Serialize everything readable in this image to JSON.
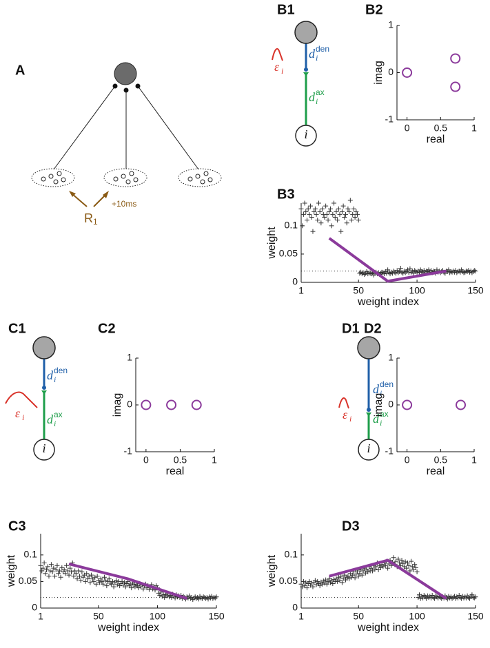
{
  "diagram_A": {
    "label": "A",
    "stimulus": {
      "base": "R",
      "sub": "1"
    },
    "delay": "+10ms"
  },
  "neuron_diagrams": [
    {
      "label": "B1",
      "den": {
        "base": "d",
        "sub": "i",
        "sup": "den"
      },
      "ax": {
        "base": "d",
        "sub": "i",
        "sup": "ax"
      },
      "kernel": {
        "base": "ε",
        "sub": "i"
      },
      "node": "i"
    },
    {
      "label": "C1",
      "den": {
        "base": "d",
        "sub": "i",
        "sup": "den"
      },
      "ax": {
        "base": "d",
        "sub": "i",
        "sup": "ax"
      },
      "kernel": {
        "base": "ε",
        "sub": "i"
      },
      "node": "i"
    },
    {
      "label": "D1",
      "den": {
        "base": "d",
        "sub": "i",
        "sup": "den"
      },
      "ax": {
        "base": "d",
        "sub": "i",
        "sup": "ax"
      },
      "kernel": {
        "base": "ε",
        "sub": "i"
      },
      "node": "i"
    }
  ],
  "chart_data": [
    {
      "type": "scatter",
      "label": "B2",
      "x_label": "real",
      "y_label": "imag",
      "marker": "circle",
      "color": "#8b3a9b",
      "x": [
        0,
        0.72,
        0.72
      ],
      "values": [
        0,
        0.3,
        -0.3
      ],
      "xlim": [
        -0.15,
        1
      ],
      "xticks": [
        0,
        0.5,
        1
      ],
      "ylim": [
        -1,
        1
      ],
      "yticks": [
        -1,
        0,
        1
      ]
    },
    {
      "type": "scatter",
      "label": "B3",
      "x_label": "weight index",
      "y_label": "weight",
      "marker": "plus",
      "color": "#333333",
      "x": [
        1,
        2,
        3,
        4,
        5,
        6,
        7,
        8,
        9,
        10,
        11,
        12,
        13,
        14,
        15,
        16,
        17,
        18,
        19,
        20,
        21,
        22,
        23,
        24,
        25,
        26,
        27,
        28,
        29,
        30,
        31,
        32,
        33,
        34,
        35,
        36,
        37,
        38,
        39,
        40,
        41,
        42,
        43,
        44,
        45,
        46,
        47,
        48,
        49,
        50,
        51,
        52,
        53,
        54,
        55,
        56,
        57,
        58,
        59,
        60,
        61,
        62,
        63,
        64,
        65,
        66,
        67,
        68,
        69,
        70,
        71,
        72,
        73,
        74,
        75,
        76,
        77,
        78,
        79,
        80,
        81,
        82,
        83,
        84,
        85,
        86,
        87,
        88,
        89,
        90,
        91,
        92,
        93,
        94,
        95,
        96,
        97,
        98,
        99,
        100,
        101,
        102,
        103,
        104,
        105,
        106,
        107,
        108,
        109,
        110,
        111,
        112,
        113,
        114,
        115,
        116,
        117,
        118,
        119,
        120,
        121,
        122,
        123,
        124,
        125,
        126,
        127,
        128,
        129,
        130,
        131,
        132,
        133,
        134,
        135,
        136,
        137,
        138,
        139,
        140,
        141,
        142,
        143,
        144,
        145,
        146,
        147,
        148,
        149,
        150
      ],
      "values": [
        0.13,
        0.1,
        0.12,
        0.14,
        0.125,
        0.11,
        0.13,
        0.12,
        0.135,
        0.115,
        0.09,
        0.125,
        0.13,
        0.12,
        0.11,
        0.14,
        0.125,
        0.105,
        0.13,
        0.12,
        0.115,
        0.135,
        0.12,
        0.11,
        0.125,
        0.13,
        0.1,
        0.12,
        0.14,
        0.115,
        0.125,
        0.11,
        0.13,
        0.12,
        0.09,
        0.125,
        0.135,
        0.115,
        0.12,
        0.105,
        0.13,
        0.125,
        0.145,
        0.11,
        0.12,
        0.13,
        0.115,
        0.125,
        0.12,
        0.11,
        0.016,
        0.018,
        0.015,
        0.017,
        0.014,
        0.016,
        0.019,
        0.015,
        0.017,
        0.016,
        0.015,
        0.017,
        0.013,
        0.016,
        0.018,
        0.015,
        0.017,
        0.014,
        0.016,
        0.018,
        0.017,
        0.015,
        0.019,
        0.016,
        0.022,
        0.017,
        0.015,
        0.018,
        0.016,
        0.02,
        0.018,
        0.016,
        0.021,
        0.017,
        0.019,
        0.025,
        0.018,
        0.016,
        0.02,
        0.017,
        0.019,
        0.022,
        0.017,
        0.024,
        0.018,
        0.02,
        0.016,
        0.021,
        0.019,
        0.018,
        0.02,
        0.017,
        0.022,
        0.019,
        0.018,
        0.021,
        0.016,
        0.02,
        0.019,
        0.022,
        0.018,
        0.021,
        0.017,
        0.02,
        0.019,
        0.016,
        0.022,
        0.018,
        0.02,
        0.017,
        0.019,
        0.021,
        0.018,
        0.016,
        0.02,
        0.019,
        0.022,
        0.017,
        0.019,
        0.018,
        0.02,
        0.018,
        0.021,
        0.017,
        0.019,
        0.02,
        0.018,
        0.022,
        0.019,
        0.017,
        0.018,
        0.02,
        0.019,
        0.021,
        0.018,
        0.02,
        0.017,
        0.019,
        0.021,
        0.02
      ],
      "line": {
        "color": "#8b3a9b",
        "x": [
          25,
          75,
          125
        ],
        "values": [
          0.078,
          0.002,
          0.02
        ]
      },
      "reference_line": 0.02,
      "xlim": [
        1,
        150
      ],
      "xticks": [
        1,
        50,
        100,
        150
      ],
      "ylim": [
        0,
        0.14
      ],
      "yticks": [
        0,
        0.05,
        0.1
      ]
    },
    {
      "type": "scatter",
      "label": "C2",
      "x_label": "real",
      "y_label": "imag",
      "marker": "circle",
      "color": "#8b3a9b",
      "x": [
        0,
        0.37,
        0.74
      ],
      "values": [
        0,
        0,
        0
      ],
      "xlim": [
        -0.15,
        1
      ],
      "xticks": [
        0,
        0.5,
        1
      ],
      "ylim": [
        -1,
        1
      ],
      "yticks": [
        -1,
        0,
        1
      ]
    },
    {
      "type": "scatter",
      "label": "C3",
      "x_label": "weight index",
      "y_label": "weight",
      "marker": "plus",
      "color": "#333333",
      "x": [
        1,
        2,
        3,
        4,
        5,
        6,
        7,
        8,
        9,
        10,
        11,
        12,
        13,
        14,
        15,
        16,
        17,
        18,
        19,
        20,
        21,
        22,
        23,
        24,
        25,
        26,
        27,
        28,
        29,
        30,
        31,
        32,
        33,
        34,
        35,
        36,
        37,
        38,
        39,
        40,
        41,
        42,
        43,
        44,
        45,
        46,
        47,
        48,
        49,
        50,
        51,
        52,
        53,
        54,
        55,
        56,
        57,
        58,
        59,
        60,
        61,
        62,
        63,
        64,
        65,
        66,
        67,
        68,
        69,
        70,
        71,
        72,
        73,
        74,
        75,
        76,
        77,
        78,
        79,
        80,
        81,
        82,
        83,
        84,
        85,
        86,
        87,
        88,
        89,
        90,
        91,
        92,
        93,
        94,
        95,
        96,
        97,
        98,
        99,
        100,
        101,
        102,
        103,
        104,
        105,
        106,
        107,
        108,
        109,
        110,
        111,
        112,
        113,
        114,
        115,
        116,
        117,
        118,
        119,
        120,
        121,
        122,
        123,
        124,
        125,
        126,
        127,
        128,
        129,
        130,
        131,
        132,
        133,
        134,
        135,
        136,
        137,
        138,
        139,
        140,
        141,
        142,
        143,
        144,
        145,
        146,
        147,
        148,
        149,
        150
      ],
      "values": [
        0.08,
        0.07,
        0.075,
        0.085,
        0.065,
        0.072,
        0.078,
        0.06,
        0.07,
        0.082,
        0.068,
        0.075,
        0.06,
        0.072,
        0.08,
        0.065,
        0.07,
        0.058,
        0.076,
        0.068,
        0.072,
        0.065,
        0.08,
        0.07,
        0.062,
        0.075,
        0.068,
        0.085,
        0.06,
        0.07,
        0.065,
        0.055,
        0.07,
        0.06,
        0.052,
        0.068,
        0.058,
        0.062,
        0.05,
        0.065,
        0.055,
        0.06,
        0.048,
        0.062,
        0.055,
        0.05,
        0.058,
        0.045,
        0.06,
        0.052,
        0.048,
        0.055,
        0.05,
        0.045,
        0.058,
        0.052,
        0.042,
        0.05,
        0.055,
        0.047,
        0.045,
        0.05,
        0.04,
        0.048,
        0.052,
        0.044,
        0.05,
        0.042,
        0.046,
        0.05,
        0.043,
        0.048,
        0.04,
        0.046,
        0.05,
        0.042,
        0.045,
        0.038,
        0.047,
        0.044,
        0.04,
        0.045,
        0.042,
        0.038,
        0.046,
        0.04,
        0.044,
        0.036,
        0.042,
        0.045,
        0.038,
        0.042,
        0.035,
        0.04,
        0.044,
        0.036,
        0.04,
        0.034,
        0.042,
        0.038,
        0.028,
        0.024,
        0.03,
        0.022,
        0.026,
        0.02,
        0.025,
        0.023,
        0.028,
        0.021,
        0.024,
        0.02,
        0.026,
        0.022,
        0.019,
        0.025,
        0.021,
        0.023,
        0.02,
        0.024,
        0.018,
        0.022,
        0.02,
        0.017,
        0.021,
        0.019,
        0.023,
        0.018,
        0.02,
        0.016,
        0.019,
        0.021,
        0.018,
        0.02,
        0.017,
        0.022,
        0.019,
        0.018,
        0.021,
        0.02,
        0.018,
        0.02,
        0.017,
        0.021,
        0.019,
        0.022,
        0.018,
        0.02,
        0.019,
        0.021
      ],
      "line": {
        "color": "#8b3a9b",
        "x": [
          25,
          75,
          125
        ],
        "values": [
          0.083,
          0.055,
          0.018
        ]
      },
      "reference_line": 0.02,
      "xlim": [
        1,
        150
      ],
      "xticks": [
        1,
        50,
        100,
        150
      ],
      "ylim": [
        0,
        0.14
      ],
      "yticks": [
        0,
        0.05,
        0.1
      ]
    },
    {
      "type": "scatter",
      "label": "D2",
      "x_label": "real",
      "y_label": "imag",
      "marker": "circle",
      "color": "#8b3a9b",
      "x": [
        0,
        0.8
      ],
      "values": [
        0,
        0
      ],
      "xlim": [
        -0.15,
        1
      ],
      "xticks": [
        0,
        0.5,
        1
      ],
      "ylim": [
        -1,
        1
      ],
      "yticks": [
        -1,
        0,
        1
      ]
    },
    {
      "type": "scatter",
      "label": "D3",
      "x_label": "weight index",
      "y_label": "weight",
      "marker": "plus",
      "color": "#333333",
      "x": [
        1,
        2,
        3,
        4,
        5,
        6,
        7,
        8,
        9,
        10,
        11,
        12,
        13,
        14,
        15,
        16,
        17,
        18,
        19,
        20,
        21,
        22,
        23,
        24,
        25,
        26,
        27,
        28,
        29,
        30,
        31,
        32,
        33,
        34,
        35,
        36,
        37,
        38,
        39,
        40,
        41,
        42,
        43,
        44,
        45,
        46,
        47,
        48,
        49,
        50,
        51,
        52,
        53,
        54,
        55,
        56,
        57,
        58,
        59,
        60,
        61,
        62,
        63,
        64,
        65,
        66,
        67,
        68,
        69,
        70,
        71,
        72,
        73,
        74,
        75,
        76,
        77,
        78,
        79,
        80,
        81,
        82,
        83,
        84,
        85,
        86,
        87,
        88,
        89,
        90,
        91,
        92,
        93,
        94,
        95,
        96,
        97,
        98,
        99,
        100,
        101,
        102,
        103,
        104,
        105,
        106,
        107,
        108,
        109,
        110,
        111,
        112,
        113,
        114,
        115,
        116,
        117,
        118,
        119,
        120,
        121,
        122,
        123,
        124,
        125,
        126,
        127,
        128,
        129,
        130,
        131,
        132,
        133,
        134,
        135,
        136,
        137,
        138,
        139,
        140,
        141,
        142,
        143,
        144,
        145,
        146,
        147,
        148,
        149,
        150
      ],
      "values": [
        0.045,
        0.04,
        0.05,
        0.042,
        0.048,
        0.038,
        0.046,
        0.05,
        0.043,
        0.047,
        0.04,
        0.048,
        0.052,
        0.044,
        0.05,
        0.046,
        0.042,
        0.049,
        0.045,
        0.051,
        0.047,
        0.053,
        0.045,
        0.05,
        0.055,
        0.048,
        0.052,
        0.046,
        0.054,
        0.05,
        0.055,
        0.05,
        0.058,
        0.052,
        0.06,
        0.048,
        0.056,
        0.062,
        0.053,
        0.058,
        0.06,
        0.055,
        0.065,
        0.058,
        0.062,
        0.068,
        0.057,
        0.064,
        0.07,
        0.06,
        0.065,
        0.072,
        0.062,
        0.07,
        0.075,
        0.066,
        0.073,
        0.068,
        0.078,
        0.07,
        0.075,
        0.07,
        0.08,
        0.073,
        0.078,
        0.085,
        0.072,
        0.08,
        0.076,
        0.082,
        0.078,
        0.085,
        0.08,
        0.088,
        0.075,
        0.083,
        0.09,
        0.08,
        0.086,
        0.095,
        0.082,
        0.088,
        0.078,
        0.092,
        0.085,
        0.08,
        0.09,
        0.084,
        0.078,
        0.087,
        0.075,
        0.085,
        0.08,
        0.07,
        0.088,
        0.078,
        0.072,
        0.082,
        0.076,
        0.068,
        0.02,
        0.025,
        0.018,
        0.022,
        0.019,
        0.024,
        0.021,
        0.018,
        0.023,
        0.02,
        0.022,
        0.019,
        0.024,
        0.02,
        0.018,
        0.023,
        0.021,
        0.019,
        0.022,
        0.02,
        0.018,
        0.021,
        0.019,
        0.023,
        0.02,
        0.017,
        0.022,
        0.019,
        0.021,
        0.018,
        0.02,
        0.022,
        0.018,
        0.021,
        0.019,
        0.024,
        0.02,
        0.018,
        0.022,
        0.019,
        0.021,
        0.019,
        0.023,
        0.02,
        0.018,
        0.022,
        0.025,
        0.02,
        0.019,
        0.021
      ],
      "line": {
        "color": "#8b3a9b",
        "x": [
          25,
          75,
          125
        ],
        "values": [
          0.06,
          0.09,
          0.018
        ]
      },
      "reference_line": 0.02,
      "xlim": [
        1,
        150
      ],
      "xticks": [
        1,
        50,
        100,
        150
      ],
      "ylim": [
        0,
        0.14
      ],
      "yticks": [
        0,
        0.05,
        0.1
      ]
    }
  ]
}
